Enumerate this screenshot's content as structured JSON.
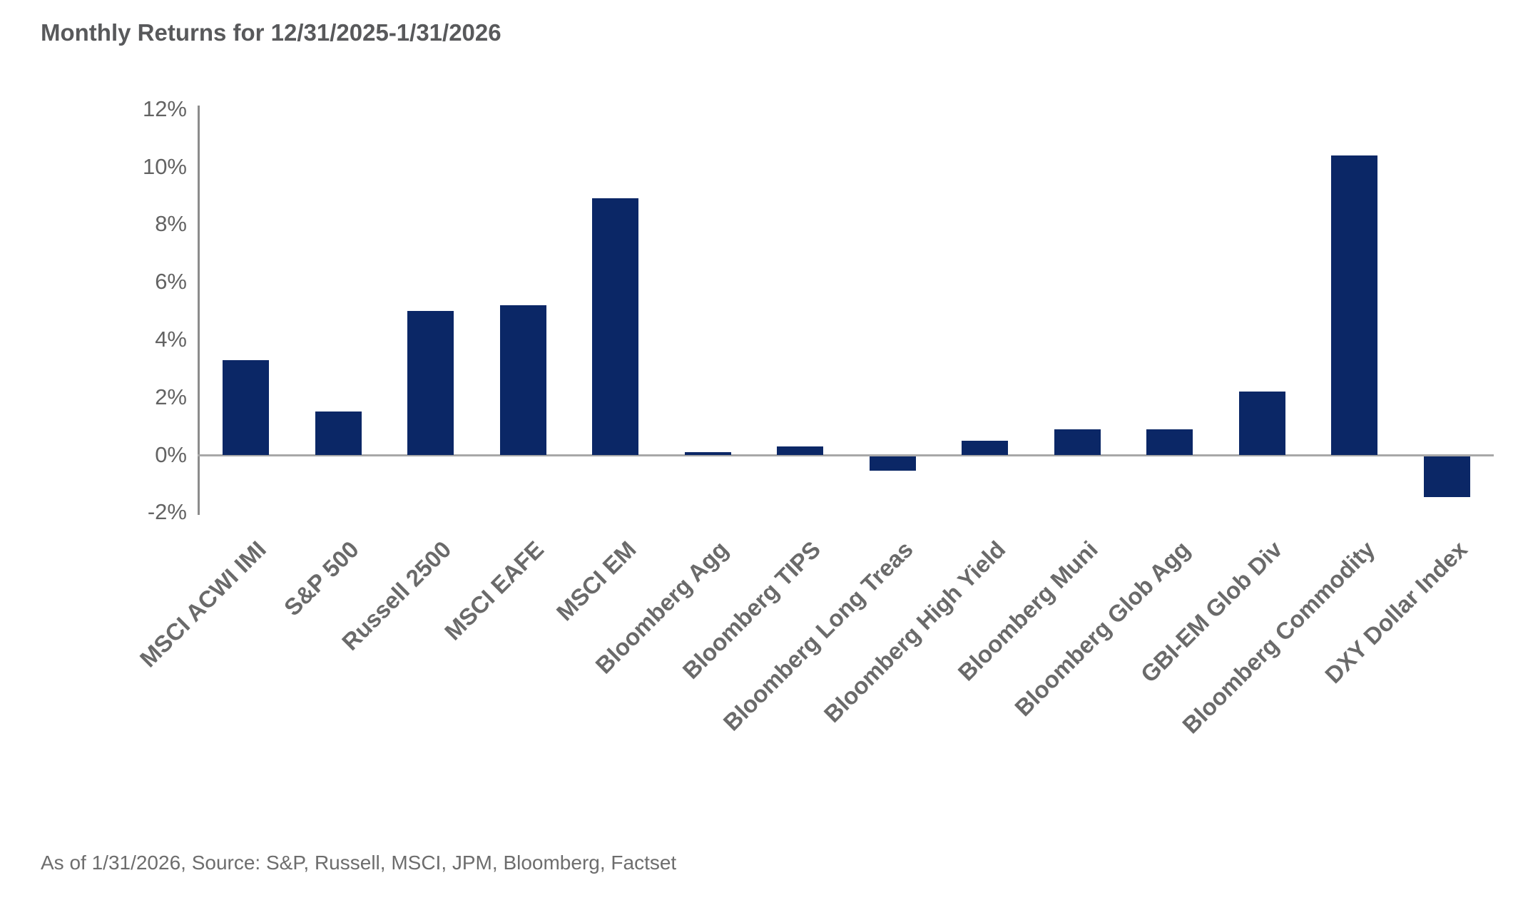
{
  "title": "Monthly Returns for 12/31/2025-1/31/2026",
  "footer": "As of 1/31/2026, Source: S&P, Russell, MSCI, JPM, Bloomberg, Factset",
  "chart_data": {
    "type": "bar",
    "title": "Monthly Returns for 12/31/2025-1/31/2026",
    "categories": [
      "MSCI ACWI IMI",
      "S&P 500",
      "Russell 2500",
      "MSCI EAFE",
      "MSCI EM",
      "Bloomberg Agg",
      "Bloomberg TIPS",
      "Bloomberg Long Treas",
      "Bloomberg High Yield",
      "Bloomberg Muni",
      "Bloomberg Glob Agg",
      "GBI-EM Glob Div",
      "Bloomberg Commodity",
      "DXY Dollar Index"
    ],
    "values": [
      3.3,
      1.5,
      5.0,
      5.2,
      8.9,
      0.1,
      0.3,
      -0.5,
      0.5,
      0.9,
      0.9,
      2.2,
      10.4,
      -1.4
    ],
    "xlabel": "",
    "ylabel": "",
    "ylim": [
      -2,
      12
    ],
    "yticks": [
      12,
      10,
      8,
      6,
      4,
      2,
      0,
      -2
    ],
    "ytick_labels": [
      "12%",
      "10%",
      "8%",
      "6%",
      "4%",
      "2%",
      "0%",
      "-2%"
    ],
    "grid": false,
    "legend": "none",
    "bar_color": "#0b2766",
    "axis_color": "#8c8c8c",
    "zero_line_color": "#a8a8a8",
    "tick_label_color": "#636363",
    "x_label_color": "#6a6a6a",
    "title_color": "#58595b",
    "footer_color": "#6d6d6d"
  }
}
